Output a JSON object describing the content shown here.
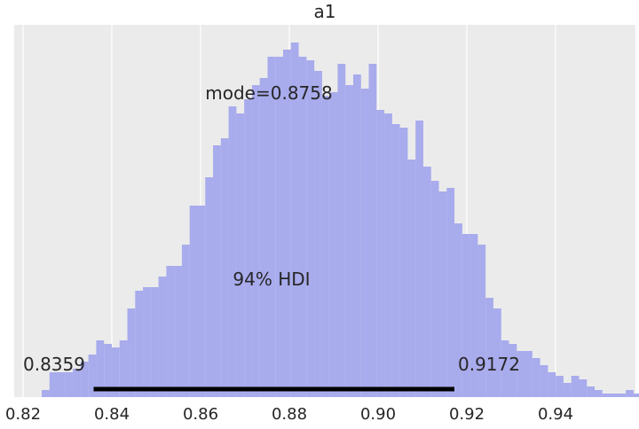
{
  "chart_data": {
    "type": "bar",
    "title": "a1",
    "xlabel": "",
    "ylabel": "",
    "xlim": [
      0.818,
      0.958
    ],
    "ylim": [
      0,
      1.0
    ],
    "xticks": [
      0.82,
      0.84,
      0.86,
      0.88,
      0.9,
      0.92,
      0.94
    ],
    "xtick_labels": [
      "0.82",
      "0.84",
      "0.86",
      "0.88",
      "0.90",
      "0.92",
      "0.94"
    ],
    "yticks_visible": false,
    "grid": true,
    "background": "#ebebeb",
    "bar_color": "#a8abec",
    "bin_edges_start": 0.8242,
    "bin_width": 0.001755,
    "values": [
      0.02,
      0.07,
      0.07,
      0.07,
      0.08,
      0.1,
      0.12,
      0.16,
      0.15,
      0.14,
      0.16,
      0.25,
      0.3,
      0.31,
      0.31,
      0.34,
      0.37,
      0.37,
      0.43,
      0.54,
      0.54,
      0.62,
      0.71,
      0.73,
      0.82,
      0.8,
      0.84,
      0.88,
      0.9,
      0.96,
      0.96,
      0.98,
      1.0,
      0.96,
      0.95,
      0.92,
      0.85,
      0.86,
      0.94,
      0.88,
      0.91,
      0.87,
      0.94,
      0.81,
      0.8,
      0.77,
      0.76,
      0.67,
      0.78,
      0.65,
      0.61,
      0.58,
      0.59,
      0.49,
      0.46,
      0.46,
      0.43,
      0.28,
      0.25,
      0.16,
      0.15,
      0.13,
      0.13,
      0.11,
      0.09,
      0.07,
      0.06,
      0.04,
      0.06,
      0.05,
      0.03,
      0.02,
      0.01,
      0.01,
      0.01,
      0.02,
      0.01,
      0.01,
      0.02,
      0.0,
      0.01,
      0.01
    ],
    "hdi": {
      "label": "94% HDI",
      "low": 0.8359,
      "high": 0.9172,
      "low_label": "0.8359",
      "high_label": "0.9172",
      "color": "#000000"
    },
    "mode": {
      "label": "mode=0.8758",
      "value": 0.8758
    }
  }
}
